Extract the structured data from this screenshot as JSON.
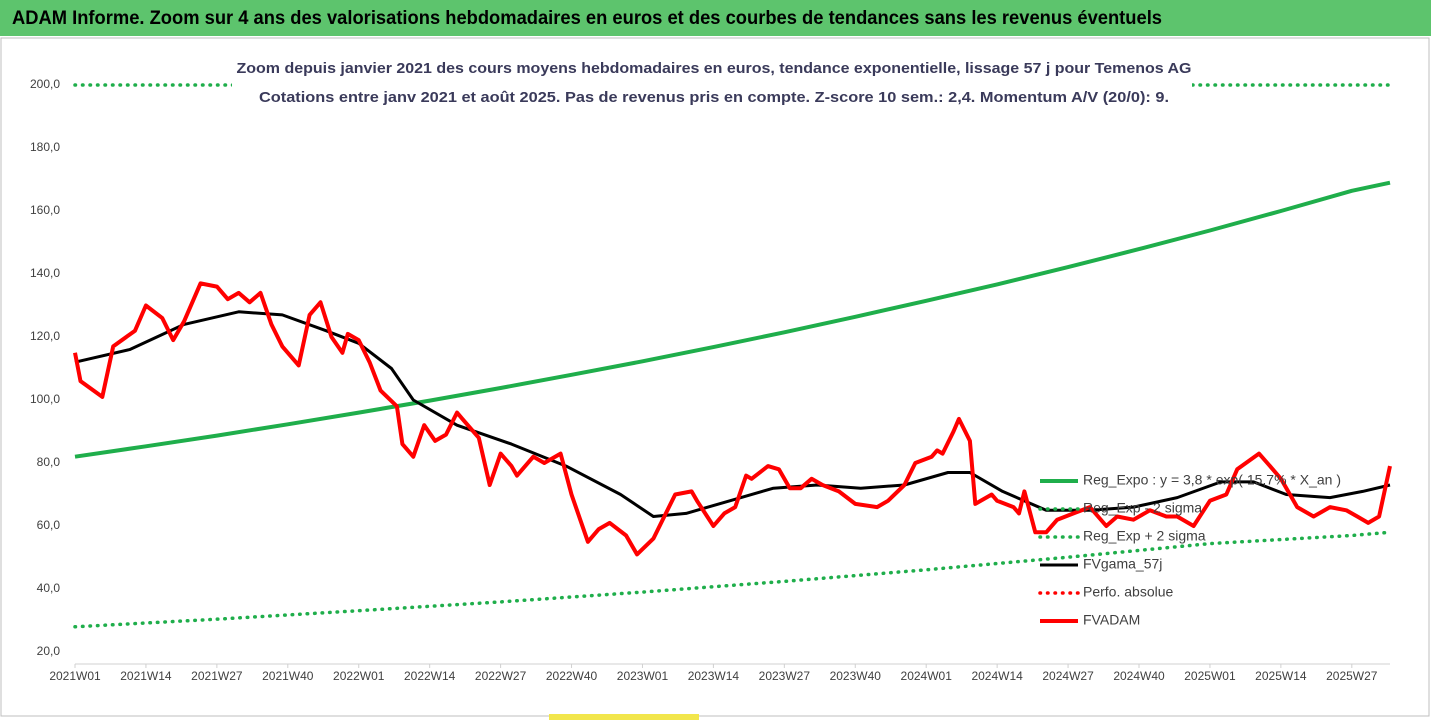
{
  "header": {
    "title": "ADAM Informe. Zoom sur 4 ans des valorisations hebdomadaires en euros et des courbes de tendances sans les revenus éventuels"
  },
  "chart_data": {
    "type": "line",
    "title": "Zoom depuis janvier 2021 des cours moyens hebdomadaires en euros, tendance exponentielle, lissage 57 j pour Temenos AG",
    "subtitle": "Cotations entre janv 2021 et août 2025.  Pas de revenus pris en compte. Z-score 10 sem.: 2,4. Momentum A/V (20/0): 9.",
    "xlim": [
      0,
      241
    ],
    "xticks": [
      {
        "value": 0,
        "label": "2021W01"
      },
      {
        "value": 13,
        "label": "2021W14"
      },
      {
        "value": 26,
        "label": "2021W27"
      },
      {
        "value": 39,
        "label": "2021W40"
      },
      {
        "value": 52,
        "label": "2022W01"
      },
      {
        "value": 65,
        "label": "2022W14"
      },
      {
        "value": 78,
        "label": "2022W27"
      },
      {
        "value": 91,
        "label": "2022W40"
      },
      {
        "value": 104,
        "label": "2023W01"
      },
      {
        "value": 117,
        "label": "2023W14"
      },
      {
        "value": 130,
        "label": "2023W27"
      },
      {
        "value": 143,
        "label": "2023W40"
      },
      {
        "value": 156,
        "label": "2024W01"
      },
      {
        "value": 169,
        "label": "2024W14"
      },
      {
        "value": 182,
        "label": "2024W27"
      },
      {
        "value": 195,
        "label": "2024W40"
      },
      {
        "value": 208,
        "label": "2025W01"
      },
      {
        "value": 221,
        "label": "2025W14"
      },
      {
        "value": 234,
        "label": "2025W27"
      }
    ],
    "ylim": [
      20,
      200
    ],
    "yticks": [
      {
        "value": 20,
        "label": "20,0"
      },
      {
        "value": 40,
        "label": "40,0"
      },
      {
        "value": 60,
        "label": "60,0"
      },
      {
        "value": 80,
        "label": "80,0"
      },
      {
        "value": 100,
        "label": "100,0"
      },
      {
        "value": 120,
        "label": "120,0"
      },
      {
        "value": 140,
        "label": "140,0"
      },
      {
        "value": 160,
        "label": "160,0"
      },
      {
        "value": 180,
        "label": "180,0"
      },
      {
        "value": 200,
        "label": "200,0"
      }
    ],
    "grid": false,
    "legend": "right",
    "series": [
      {
        "name": "Reg_Expo : y = 3,8 * exp( 15,7% * X_an )",
        "color": "#1fae4b",
        "line_style": "solid",
        "x": [
          0,
          13,
          26,
          39,
          52,
          65,
          78,
          91,
          104,
          117,
          130,
          143,
          156,
          169,
          182,
          195,
          208,
          221,
          234,
          241
        ],
        "values": [
          82,
          85.3,
          88.7,
          92.3,
          96,
          99.8,
          103.8,
          108,
          112.3,
          116.8,
          121.5,
          126.4,
          131.5,
          136.7,
          142.2,
          147.9,
          153.8,
          160,
          166.4,
          169
        ]
      },
      {
        "name": "Reg_Exp - 2 sigma",
        "color": "#1fae4b",
        "line_style": "dotted",
        "x": [
          0,
          26,
          52,
          78,
          104,
          130,
          156,
          182,
          208,
          234,
          241
        ],
        "values": [
          28,
          30.4,
          33.1,
          35.9,
          39,
          42.4,
          46.1,
          50.1,
          54.4,
          57,
          58
        ]
      },
      {
        "name": "Reg_Exp + 2 sigma",
        "color": "#1fae4b",
        "line_style": "dotted",
        "x": [
          0,
          241
        ],
        "values": [
          200,
          200
        ]
      },
      {
        "name": "FVgama_57j",
        "color": "#000000",
        "line_style": "solid",
        "x": [
          0,
          10,
          20,
          30,
          38,
          46,
          52,
          58,
          62,
          70,
          80,
          90,
          100,
          106,
          112,
          120,
          128,
          136,
          144,
          152,
          160,
          164,
          170,
          178,
          186,
          194,
          202,
          210,
          216,
          222,
          230,
          236,
          241
        ],
        "values": [
          112,
          116,
          124,
          128,
          127,
          122,
          118,
          110,
          100,
          92,
          86,
          79,
          70,
          63,
          64,
          68,
          72,
          73,
          72,
          73,
          77,
          77,
          71,
          65,
          65,
          66,
          69,
          74,
          74,
          70,
          69,
          71,
          73
        ]
      },
      {
        "name": "Perfo. absolue",
        "color": "#ff0000",
        "line_style": "dotted",
        "x": [],
        "values": []
      },
      {
        "name": "FVADAM",
        "color": "#ff0000",
        "line_style": "solid",
        "x": [
          0,
          1,
          5,
          7,
          11,
          13,
          16,
          18,
          20,
          23,
          26,
          28,
          30,
          32,
          34,
          36,
          38,
          41,
          43,
          45,
          47,
          49,
          50,
          52,
          54,
          56,
          59,
          60,
          62,
          64,
          66,
          68,
          70,
          71,
          74,
          76,
          78,
          80,
          81,
          84,
          86,
          89,
          91,
          94,
          96,
          98,
          101,
          103,
          106,
          108,
          110,
          113,
          114,
          117,
          119,
          121,
          123,
          124,
          127,
          129,
          131,
          133,
          135,
          137,
          140,
          143,
          147,
          149,
          152,
          154,
          157,
          158,
          159,
          161,
          162,
          164,
          165,
          168,
          169,
          172,
          173,
          174,
          176,
          178,
          180,
          183,
          186,
          189,
          191,
          194,
          197,
          200,
          202,
          205,
          208,
          211,
          213,
          217,
          219,
          221,
          224,
          227,
          230,
          233,
          235,
          237,
          239,
          241
        ],
        "values": [
          115,
          106,
          101,
          117,
          122,
          130,
          126,
          119,
          125,
          137,
          136,
          132,
          134,
          131,
          134,
          124,
          117,
          111,
          127,
          131,
          120,
          115,
          121,
          119,
          112,
          103,
          98,
          86,
          82,
          92,
          87,
          89,
          96,
          94,
          88,
          73,
          83,
          79,
          76,
          82,
          80,
          83,
          70,
          55,
          59,
          61,
          57,
          51,
          56,
          63,
          70,
          71,
          68,
          60,
          64,
          66,
          76,
          75,
          79,
          78,
          72,
          72,
          75,
          73,
          71,
          67,
          66,
          68,
          73,
          80,
          82,
          84,
          83,
          90,
          94,
          87,
          67,
          70,
          68,
          66,
          64,
          71,
          58,
          58,
          62,
          64,
          66,
          60,
          63,
          62,
          65,
          63,
          63,
          60,
          68,
          70,
          78,
          83,
          79,
          75,
          66,
          63,
          66,
          65,
          63,
          61,
          63,
          79
        ]
      }
    ]
  }
}
